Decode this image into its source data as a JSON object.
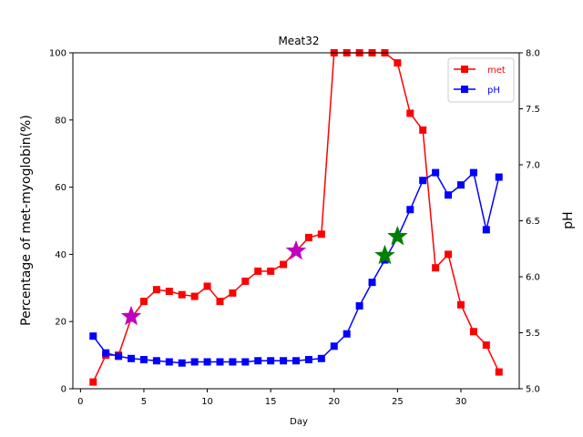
{
  "chart_data": {
    "type": "line",
    "title": "Meat32",
    "xlabel": "Day",
    "ylabel": "Percentage of met-myoglobin(%)",
    "ylabel_right": "pH",
    "xlim": [
      -0.6,
      34.6
    ],
    "ylim": [
      0,
      100
    ],
    "ylim_right": [
      5.0,
      8.0
    ],
    "x_ticks": [
      0,
      5,
      10,
      15,
      20,
      25,
      30
    ],
    "y_ticks": [
      0,
      20,
      40,
      60,
      80,
      100
    ],
    "y_ticks_right": [
      "5.0",
      "5.5",
      "6.0",
      "6.5",
      "7.0",
      "7.5",
      "8.0"
    ],
    "grid": false,
    "legend_position": "top-right",
    "series": [
      {
        "name": "met",
        "axis": "left",
        "color": "#ff0000",
        "marker": "square",
        "x": [
          1,
          2,
          3,
          4,
          5,
          6,
          7,
          8,
          9,
          10,
          11,
          12,
          13,
          14,
          15,
          16,
          17,
          18,
          19,
          20,
          21,
          22,
          23,
          24,
          25,
          26,
          27,
          28,
          29,
          30,
          31,
          32,
          33
        ],
        "values": [
          2,
          10,
          10,
          21,
          26,
          29.5,
          29,
          28,
          27.5,
          30.5,
          26,
          28.5,
          32,
          35,
          35,
          37,
          41,
          45,
          46,
          100,
          100,
          100,
          100,
          100,
          97,
          82,
          77,
          36,
          40,
          25,
          17,
          13,
          5
        ]
      },
      {
        "name": "pH",
        "axis": "right",
        "color": "#0000ff",
        "marker": "square",
        "x": [
          1,
          2,
          3,
          4,
          5,
          6,
          7,
          8,
          9,
          10,
          11,
          12,
          13,
          14,
          15,
          16,
          17,
          18,
          19,
          20,
          21,
          22,
          23,
          24,
          25,
          26,
          27,
          28,
          29,
          30,
          31,
          32,
          33
        ],
        "values": [
          5.47,
          5.32,
          5.29,
          5.27,
          5.26,
          5.25,
          5.24,
          5.23,
          5.24,
          5.24,
          5.24,
          5.24,
          5.24,
          5.25,
          5.25,
          5.25,
          5.25,
          5.26,
          5.27,
          5.38,
          5.49,
          5.74,
          5.95,
          6.15,
          6.35,
          6.6,
          6.86,
          6.93,
          6.73,
          6.82,
          6.93,
          6.42,
          6.89
        ]
      }
    ],
    "annotations": [
      {
        "marker": "star",
        "color": "#c000c0",
        "axis": "left",
        "x": 4,
        "y": 21.5
      },
      {
        "marker": "star",
        "color": "#c000c0",
        "axis": "left",
        "x": 17,
        "y": 41
      },
      {
        "marker": "star",
        "color": "#008000",
        "axis": "right",
        "x": 24,
        "y": 6.19
      },
      {
        "marker": "star",
        "color": "#008000",
        "axis": "right",
        "x": 25,
        "y": 6.36
      }
    ]
  }
}
